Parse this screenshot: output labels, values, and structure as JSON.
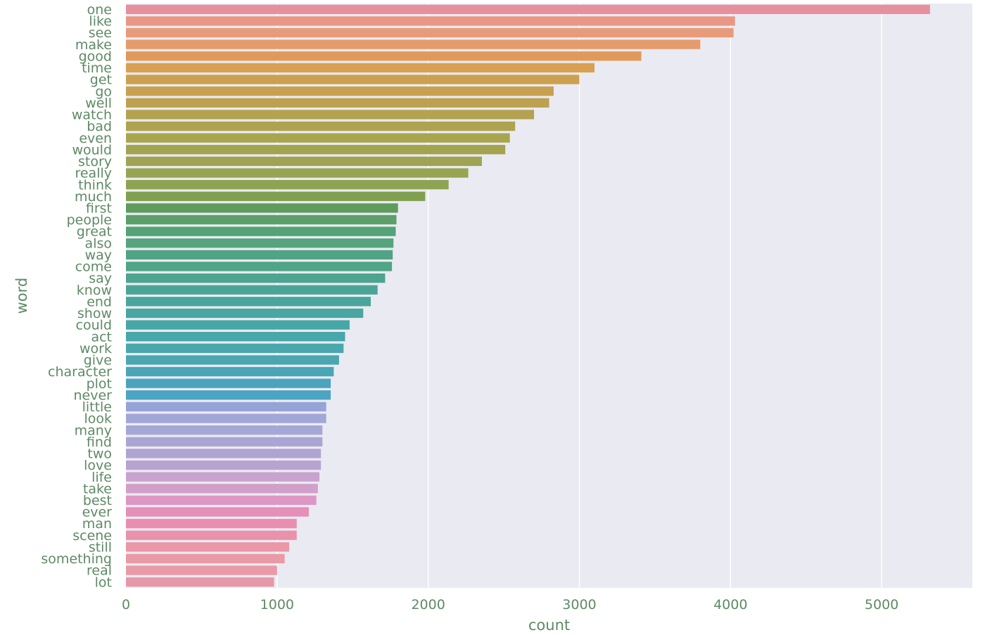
{
  "chart_data": {
    "type": "bar",
    "orientation": "horizontal",
    "xlabel": "count",
    "ylabel": "word",
    "xlim": [
      0,
      5600
    ],
    "xticks": [
      0,
      1000,
      2000,
      3000,
      4000,
      5000
    ],
    "grid": true,
    "legend": "none",
    "colors": {
      "plot_background": "#eaeaf2",
      "grid": "#ffffff",
      "text": "#5e8a64"
    },
    "categories": [
      "one",
      "like",
      "see",
      "make",
      "good",
      "time",
      "get",
      "go",
      "well",
      "watch",
      "bad",
      "even",
      "would",
      "story",
      "really",
      "think",
      "much",
      "first",
      "people",
      "great",
      "also",
      "way",
      "come",
      "say",
      "know",
      "end",
      "show",
      "could",
      "act",
      "work",
      "give",
      "character",
      "plot",
      "never",
      "little",
      "look",
      "many",
      "find",
      "two",
      "love",
      "life",
      "take",
      "best",
      "ever",
      "man",
      "scene",
      "still",
      "something",
      "real",
      "lot"
    ],
    "values": [
      5320,
      4030,
      4020,
      3800,
      3410,
      3100,
      3000,
      2830,
      2800,
      2700,
      2575,
      2540,
      2510,
      2355,
      2265,
      2135,
      1980,
      1800,
      1790,
      1785,
      1770,
      1765,
      1760,
      1715,
      1665,
      1620,
      1570,
      1480,
      1450,
      1440,
      1410,
      1375,
      1355,
      1355,
      1325,
      1325,
      1300,
      1300,
      1290,
      1290,
      1280,
      1270,
      1260,
      1210,
      1130,
      1130,
      1080,
      1050,
      1000,
      980
    ],
    "bar_colors": [
      "#e6909e",
      "#e99784",
      "#e89b7b",
      "#e49c6d",
      "#e1995a",
      "#d9a052",
      "#cda04f",
      "#c8a150",
      "#bca150",
      "#b3a24f",
      "#aea350",
      "#a8a54f",
      "#a3a350",
      "#9ea453",
      "#97a452",
      "#8fa452",
      "#7fa04e",
      "#5d9c5c",
      "#5d9f6b",
      "#54a277",
      "#55a47d",
      "#50a384",
      "#50a487",
      "#4da48f",
      "#4ba596",
      "#4aa59c",
      "#49a6a1",
      "#47a7a6",
      "#48a7aa",
      "#48a8ae",
      "#4aa7b0",
      "#4aa6b6",
      "#4aa4bd",
      "#4aa4c2",
      "#96a3d6",
      "#a1a7d6",
      "#a6a7d7",
      "#aaa5d4",
      "#afa4d2",
      "#b8a3d0",
      "#c7a3ce",
      "#d1a0c9",
      "#dd97c5",
      "#e58fb9",
      "#e98eaf",
      "#ea91ab",
      "#ea97a8",
      "#e99aa6",
      "#e89ba7",
      "#e798a8"
    ]
  }
}
